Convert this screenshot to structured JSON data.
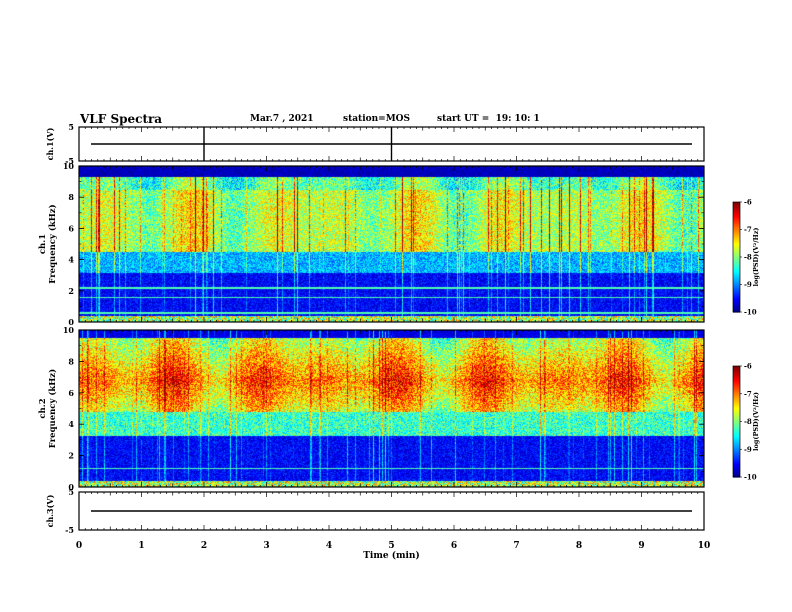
{
  "header": {
    "title": "VLF Spectra",
    "date": "Mar.7 , 2021",
    "station": "station=MOS",
    "start": "start UT =  19: 10: 1"
  },
  "chart_data": [
    {
      "type": "line",
      "panel": "ch1-waveform",
      "ylabel": "ch.1(V)",
      "ylim": [
        -5,
        5
      ],
      "y_ticks": [
        "5",
        "-5"
      ],
      "series": [
        {
          "values": [
            0,
            0
          ]
        }
      ]
    },
    {
      "type": "heatmap",
      "panel": "ch1-spectrogram",
      "ylabel": "ch.1\nFrequency (kHz)",
      "ylim": [
        0,
        10
      ],
      "y_ticks": [
        "0",
        "2",
        "4",
        "6",
        "8",
        "10"
      ],
      "colorbar": {
        "label": "log(PSD)(V²/Hz)",
        "range": [
          -10,
          -6
        ],
        "ticks": [
          "-6",
          "-7",
          "-8",
          "-9",
          "-10"
        ]
      }
    },
    {
      "type": "heatmap",
      "panel": "ch2-spectrogram",
      "ylabel": "ch.2\nFrequency (kHz)",
      "ylim": [
        0,
        10
      ],
      "y_ticks": [
        "0",
        "2",
        "4",
        "6",
        "8",
        "10"
      ],
      "colorbar": {
        "label": "log(PSD)(V²/Hz)",
        "range": [
          -10,
          -6
        ],
        "ticks": [
          "-6",
          "-7",
          "-8",
          "-9",
          "-10"
        ]
      }
    },
    {
      "type": "line",
      "panel": "ch3-waveform",
      "ylabel": "ch.3(V)",
      "ylim": [
        -5,
        5
      ],
      "y_ticks": [
        "5",
        "-5"
      ],
      "series": [
        {
          "values": [
            0,
            0
          ]
        }
      ]
    }
  ],
  "xaxis": {
    "label": "Time (min)",
    "xlim": [
      0,
      10
    ],
    "ticks": [
      "0",
      "1",
      "2",
      "3",
      "4",
      "5",
      "6",
      "7",
      "8",
      "9",
      "10"
    ]
  }
}
